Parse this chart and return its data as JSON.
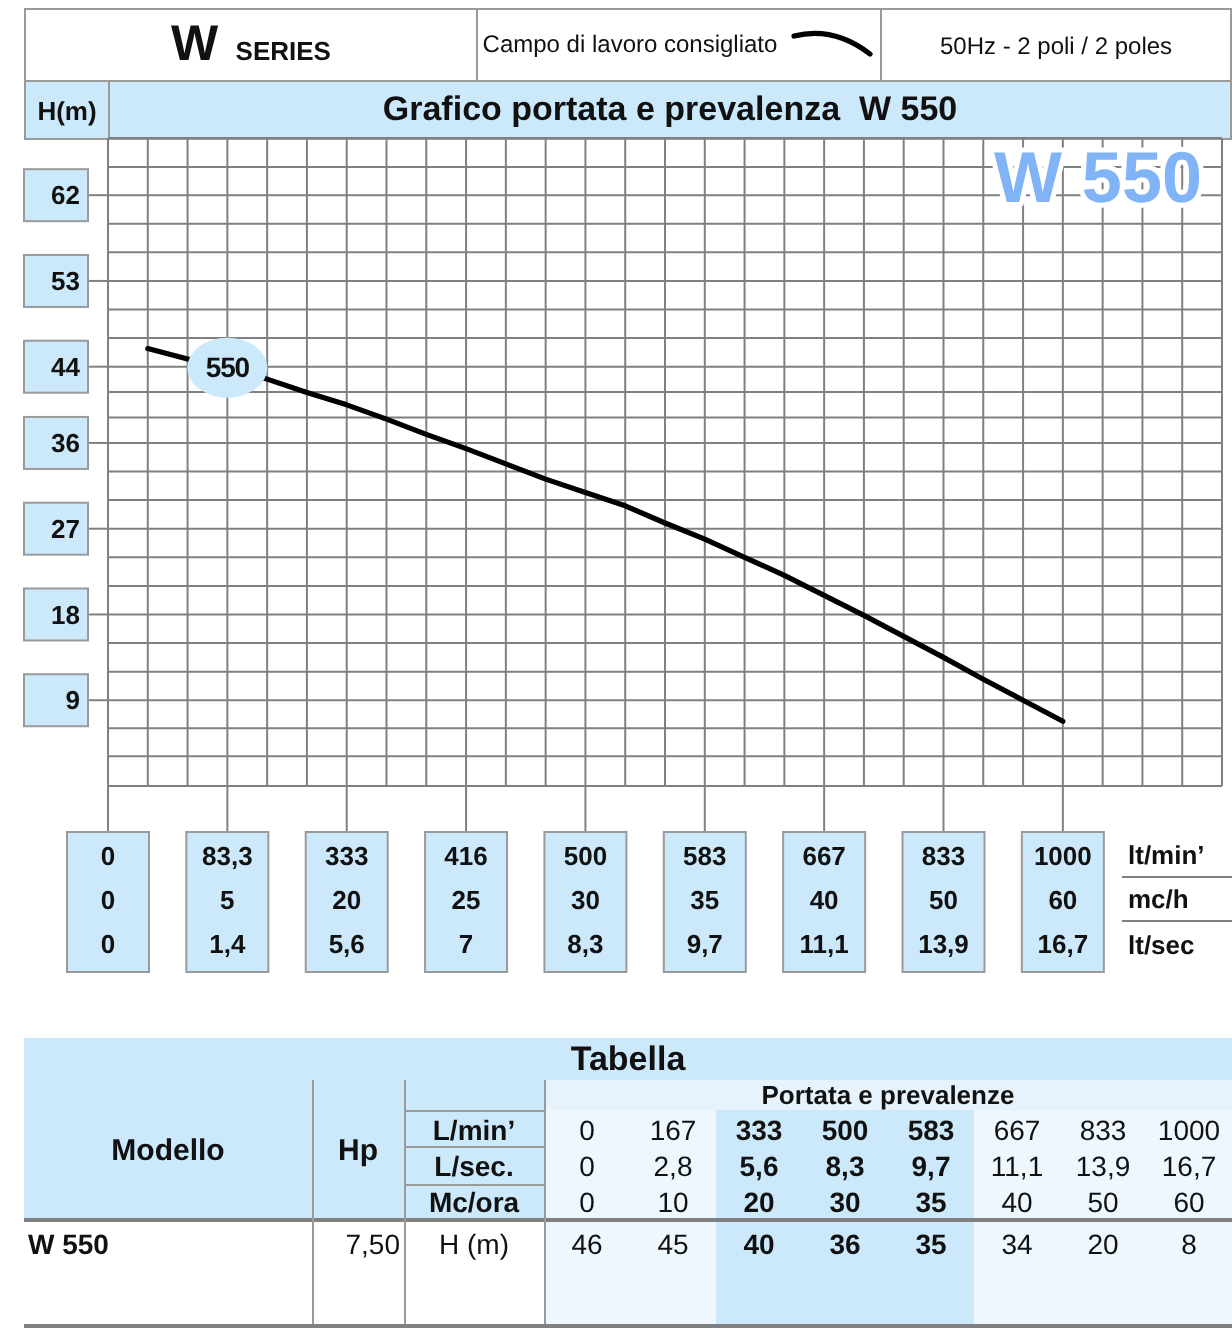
{
  "chart_data": [
    {
      "type": "line",
      "title": "Grafico portata e prevalenza  W 550",
      "ylabel": "H(m)",
      "xlabel": "lt/min’\nmc/h\nlt/sec",
      "categories": [
        "0\n0\n0",
        null,
        null,
        "83,3\n5\n1,4",
        null,
        null,
        "333\n20\n5,6",
        null,
        null,
        "416\n25\n7",
        null,
        null,
        "500\n30\n8,3",
        null,
        null,
        "583\n35\n9,7",
        null,
        null,
        "667\n40\n11,1",
        null,
        null,
        "833\n50\n13,9",
        null,
        null,
        "1000\n60\n16,7",
        null,
        null,
        null
      ],
      "series": [
        {
          "name": "Campo di lavoro consigliato",
          "color": "#000000",
          "values": [
            null,
            45.9,
            44.8,
            43.7,
            42.7,
            41.3,
            40,
            38.5,
            36.9,
            35.4,
            33.8,
            32.2,
            30.8,
            29.4,
            27.6,
            25.9,
            24,
            22.1,
            20,
            17.9,
            15.7,
            13.5,
            11.2,
            9,
            6.8,
            null,
            null,
            null
          ]
        }
      ],
      "ylim": [
        0,
        68
      ],
      "yticks": [
        9,
        18,
        27,
        36,
        44,
        53,
        62
      ],
      "grid": true,
      "legend": "top",
      "annotations": [
        "W SERIES",
        "50Hz - 2 poli / 2 poles",
        "W 550",
        {
          "text": "550",
          "x": "83,3\n5\n1,4",
          "y": 43.9
        }
      ]
    },
    {
      "type": "other",
      "title": "Tabella",
      "subtitle": "Portata e prevalenze",
      "xlabel": "L/min’",
      "categories": [
        "0",
        "167",
        "333",
        "500",
        "583",
        "667",
        "833",
        "1000"
      ],
      "colors": [
        "#eef7fd",
        "#eef7fd",
        "#cce9fb",
        "#cce9fb",
        "#cce9fb",
        "#eef7fd",
        "#eef7fd",
        "#eef7fd"
      ],
      "series": [
        {
          "name": "L/sec.",
          "colors": [
            "#eef7fd",
            "#eef7fd",
            "#cce9fb",
            "#cce9fb",
            "#cce9fb",
            "#eef7fd",
            "#eef7fd",
            "#eef7fd"
          ],
          "values": [
            0,
            2.8,
            5.6,
            8.3,
            9.7,
            11.1,
            13.9,
            16.7
          ],
          "value_labels": [
            "0",
            "2,8",
            "5,6",
            "8,3",
            "9,7",
            "11,1",
            "13,9",
            "16,7"
          ]
        },
        {
          "name": "Mc/ora",
          "colors": [
            "#eef7fd",
            "#eef7fd",
            "#cce9fb",
            "#cce9fb",
            "#cce9fb",
            "#eef7fd",
            "#eef7fd",
            "#eef7fd"
          ],
          "values": [
            0,
            10,
            20,
            30,
            35,
            40,
            50,
            60
          ]
        },
        {
          "name": "H (m)",
          "colors": [
            "#eef7fd",
            "#eef7fd",
            "#cce9fb",
            "#cce9fb",
            "#cce9fb",
            "#eef7fd",
            "#eef7fd",
            "#eef7fd"
          ],
          "values": [
            46,
            45,
            40,
            36,
            35,
            34,
            20,
            8
          ]
        }
      ],
      "data_labels": true,
      "annotations": [
        "Modello",
        "Hp",
        "W 550",
        "7,50"
      ]
    }
  ]
}
